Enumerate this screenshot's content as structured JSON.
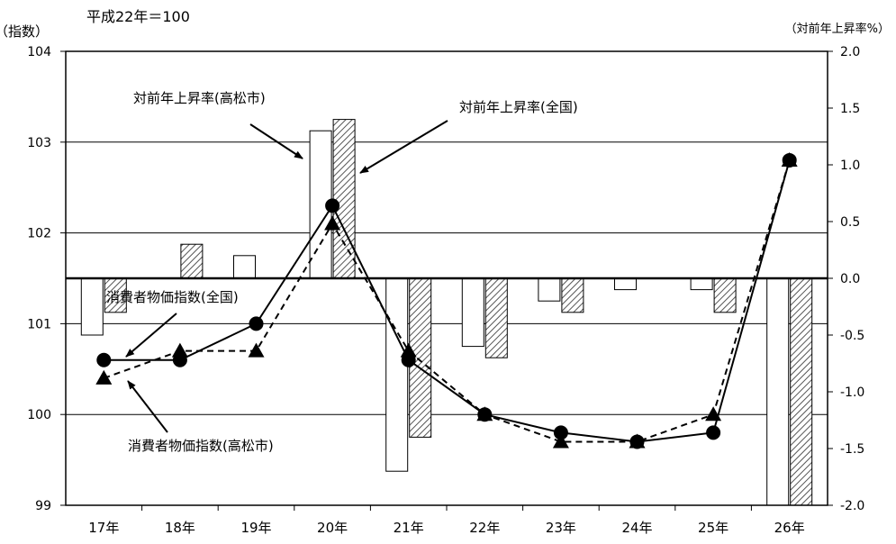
{
  "chart_data": {
    "type": "bar",
    "subtitle": "平成22年＝100",
    "y_left_label": "（指数）",
    "y_right_label": "（対前年上昇率%）",
    "categories": [
      "17年",
      "18年",
      "19年",
      "20年",
      "21年",
      "22年",
      "23年",
      "24年",
      "25年",
      "26年"
    ],
    "y_left_ticks": [
      "104",
      "103",
      "102",
      "101",
      "100",
      "99"
    ],
    "y_right_ticks": [
      "2.0",
      "1.5",
      "1.0",
      "0.5",
      "0.0",
      "-0.5",
      "-1.0",
      "-1.5",
      "-2.0"
    ],
    "ylim_left": [
      99,
      104
    ],
    "ylim_right": [
      -2.0,
      2.0
    ],
    "grid": "horizontal",
    "series": [
      {
        "name": "対前年上昇率(高松市)",
        "kind": "bar",
        "axis": "right",
        "fill": "white",
        "values": [
          -0.5,
          0.0,
          0.2,
          1.3,
          -1.7,
          -0.6,
          -0.2,
          -0.1,
          -0.1,
          -2.0
        ]
      },
      {
        "name": "対前年上昇率(全国)",
        "kind": "bar",
        "axis": "right",
        "fill": "hatched",
        "values": [
          -0.3,
          0.3,
          0.0,
          1.4,
          -1.4,
          -0.7,
          -0.3,
          0.0,
          -0.3,
          -2.0
        ]
      },
      {
        "name": "消費者物価指数(全国)",
        "kind": "line",
        "axis": "left",
        "marker": "circle",
        "line_style": "solid",
        "values": [
          100.6,
          100.6,
          101.0,
          102.3,
          100.6,
          100.0,
          99.8,
          99.7,
          99.8,
          102.8
        ]
      },
      {
        "name": "消費者物価指数(高松市)",
        "kind": "line",
        "axis": "left",
        "marker": "triangle",
        "line_style": "dashed",
        "values": [
          100.4,
          100.7,
          100.7,
          102.1,
          100.7,
          100.0,
          99.7,
          99.7,
          100.0,
          102.8
        ]
      }
    ],
    "annotations": [
      {
        "text": "対前年上昇率(高松市)",
        "target": "対前年上昇率(高松市)"
      },
      {
        "text": "対前年上昇率(全国)",
        "target": "対前年上昇率(全国)"
      },
      {
        "text": "消費者物価指数(全国)",
        "target": "消費者物価指数(全国)"
      },
      {
        "text": "消費者物価指数(高松市)",
        "target": "消費者物価指数(高松市)"
      }
    ],
    "colors": {
      "line": "#000000",
      "bar_border": "#000000",
      "background": "#ffffff"
    }
  }
}
